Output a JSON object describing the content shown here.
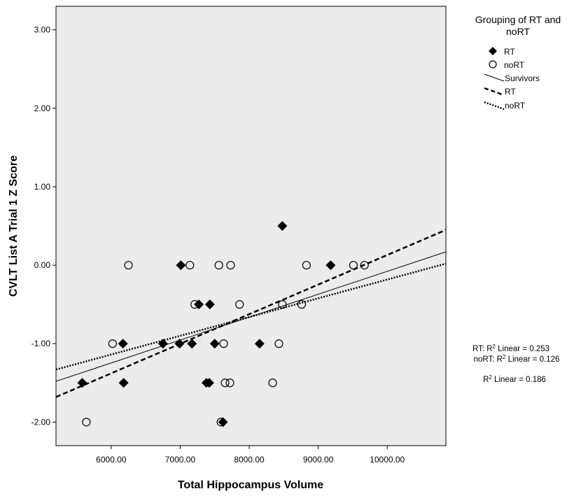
{
  "chart_data": {
    "type": "scatter",
    "xlabel": "Total Hippocampus Volume",
    "ylabel": "CVLT List A Trial 1 Z Score",
    "xlim": [
      5200,
      10850
    ],
    "ylim": [
      -2.3,
      3.3
    ],
    "x_ticks": [
      "6000.00",
      "7000.00",
      "8000.00",
      "9000.00",
      "10000.00"
    ],
    "x_tick_values": [
      6000,
      7000,
      8000,
      9000,
      10000
    ],
    "y_ticks": [
      "3.00",
      "2.00",
      "1.00",
      "0.00",
      "-1.00",
      "-2.00"
    ],
    "y_tick_values": [
      3,
      2,
      1,
      0,
      -1,
      -2
    ],
    "background": "#ececec",
    "grid": false,
    "legend_position": "top-right",
    "legend": {
      "title_line1": "Grouping of RT and",
      "title_line2": "noRT",
      "entries": [
        "RT",
        "noRT",
        "Survivors",
        "RT",
        "noRT"
      ]
    },
    "series": [
      {
        "name": "RT",
        "marker": "diamond",
        "points": [
          [
            5580,
            -1.5
          ],
          [
            6170,
            -1.0
          ],
          [
            6180,
            -1.5
          ],
          [
            6750,
            -1.0
          ],
          [
            6990,
            -1.0
          ],
          [
            7010,
            0.0
          ],
          [
            7170,
            -1.0
          ],
          [
            7270,
            -0.5
          ],
          [
            7380,
            -1.5
          ],
          [
            7420,
            -1.5
          ],
          [
            7430,
            -0.5
          ],
          [
            7500,
            -1.0
          ],
          [
            7620,
            -2.0
          ],
          [
            8150,
            -1.0
          ],
          [
            8480,
            0.5
          ],
          [
            9180,
            0.0
          ]
        ]
      },
      {
        "name": "noRT",
        "marker": "open-circle",
        "points": [
          [
            5640,
            -2.0
          ],
          [
            6020,
            -1.0
          ],
          [
            6250,
            0.0
          ],
          [
            7140,
            0.0
          ],
          [
            7210,
            -0.5
          ],
          [
            7560,
            0.0
          ],
          [
            7590,
            -2.0
          ],
          [
            7630,
            -1.0
          ],
          [
            7650,
            -1.5
          ],
          [
            7720,
            -1.5
          ],
          [
            7730,
            0.0
          ],
          [
            7860,
            -0.5
          ],
          [
            8340,
            -1.5
          ],
          [
            8430,
            -1.0
          ],
          [
            8480,
            -0.5
          ],
          [
            8760,
            -0.5
          ],
          [
            8830,
            0.0
          ],
          [
            9510,
            0.0
          ],
          [
            9670,
            0.0
          ]
        ]
      }
    ],
    "fit_lines": [
      {
        "name": "Survivors",
        "style": "solid",
        "x": [
          5200,
          10850
        ],
        "y": [
          -1.48,
          0.17
        ]
      },
      {
        "name": "RT",
        "style": "dashed",
        "x": [
          5200,
          10850
        ],
        "y": [
          -1.68,
          0.45
        ]
      },
      {
        "name": "noRT",
        "style": "dotted",
        "x": [
          5200,
          10850
        ],
        "y": [
          -1.33,
          0.02
        ]
      }
    ],
    "annotations": {
      "r2_rt_prefix": "RT: R",
      "r2_rt_suffix": " Linear = 0.253",
      "r2_nort_prefix": "noRT: R",
      "r2_nort_suffix": " Linear = 0.126",
      "r2_all_prefix": "R",
      "r2_all_suffix": " Linear = 0.186",
      "superscript": "2"
    }
  }
}
